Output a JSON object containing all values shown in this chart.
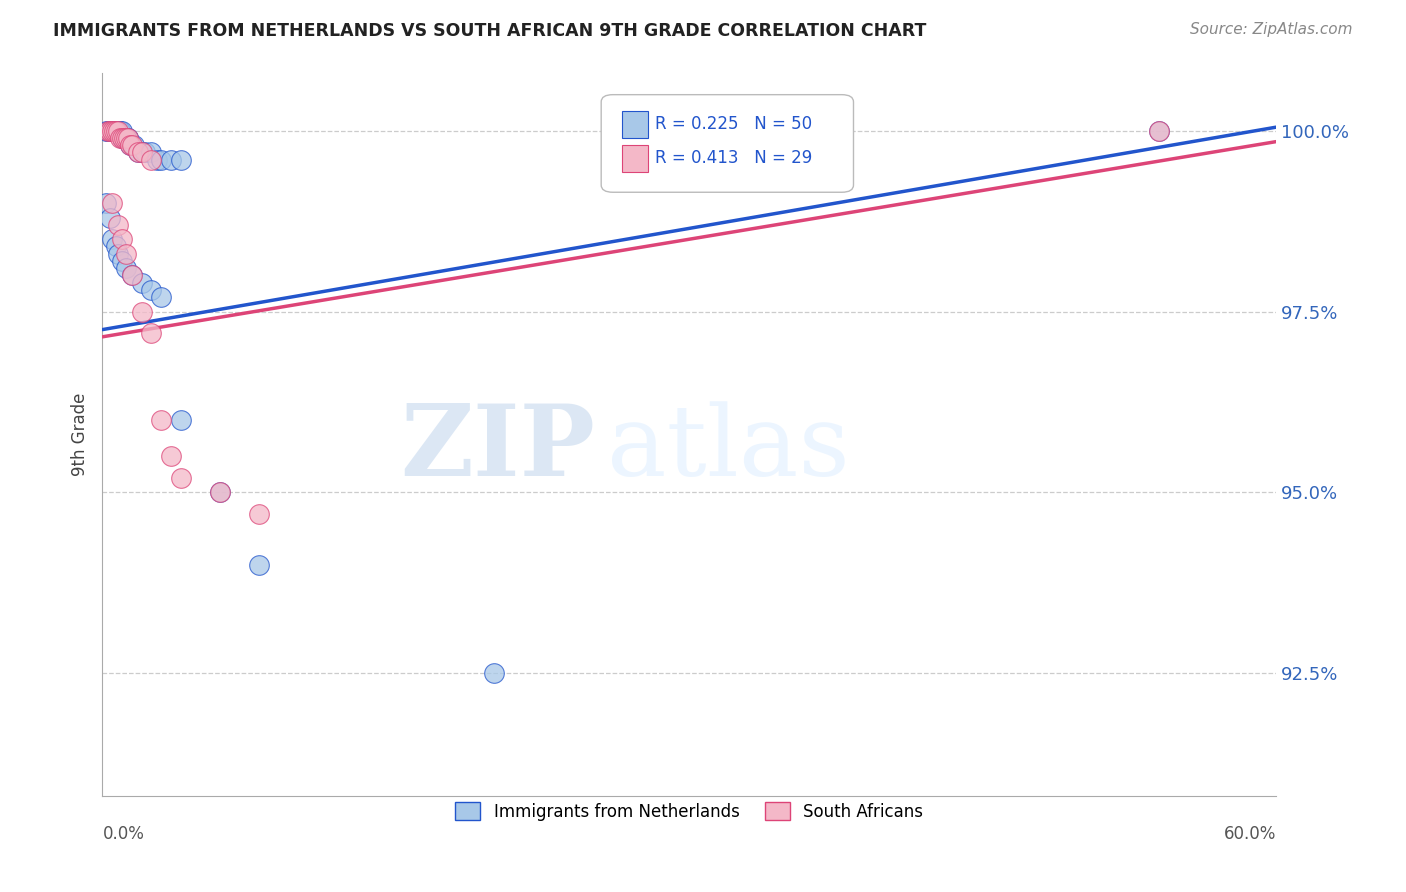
{
  "title": "IMMIGRANTS FROM NETHERLANDS VS SOUTH AFRICAN 9TH GRADE CORRELATION CHART",
  "source": "Source: ZipAtlas.com",
  "ylabel": "9th Grade",
  "ytick_labels": [
    "92.5%",
    "95.0%",
    "97.5%",
    "100.0%"
  ],
  "ytick_values": [
    0.925,
    0.95,
    0.975,
    1.0
  ],
  "xlim": [
    0.0,
    0.6
  ],
  "ylim": [
    0.908,
    1.008
  ],
  "legend_blue_label": "Immigrants from Netherlands",
  "legend_pink_label": "South Africans",
  "R_blue": 0.225,
  "N_blue": 50,
  "R_pink": 0.413,
  "N_pink": 29,
  "blue_color": "#a8c8e8",
  "pink_color": "#f4b8c8",
  "line_blue": "#2255cc",
  "line_pink": "#dd4477",
  "watermark_zip": "ZIP",
  "watermark_atlas": "atlas",
  "background_color": "#ffffff",
  "blue_points_x": [
    0.002,
    0.003,
    0.004,
    0.005,
    0.005,
    0.006,
    0.006,
    0.007,
    0.007,
    0.008,
    0.008,
    0.009,
    0.009,
    0.01,
    0.01,
    0.01,
    0.011,
    0.011,
    0.012,
    0.012,
    0.013,
    0.013,
    0.014,
    0.015,
    0.015,
    0.016,
    0.018,
    0.02,
    0.022,
    0.025,
    0.028,
    0.03,
    0.035,
    0.04,
    0.002,
    0.004,
    0.005,
    0.007,
    0.008,
    0.01,
    0.012,
    0.015,
    0.02,
    0.025,
    0.03,
    0.04,
    0.06,
    0.08,
    0.2,
    0.54
  ],
  "blue_points_y": [
    1.0,
    1.0,
    1.0,
    1.0,
    1.0,
    1.0,
    1.0,
    1.0,
    1.0,
    1.0,
    1.0,
    1.0,
    1.0,
    1.0,
    0.999,
    0.999,
    0.999,
    0.999,
    0.999,
    0.999,
    0.999,
    0.999,
    0.998,
    0.998,
    0.998,
    0.998,
    0.997,
    0.997,
    0.997,
    0.997,
    0.996,
    0.996,
    0.996,
    0.996,
    0.99,
    0.988,
    0.985,
    0.984,
    0.983,
    0.982,
    0.981,
    0.98,
    0.979,
    0.978,
    0.977,
    0.96,
    0.95,
    0.94,
    0.925,
    1.0
  ],
  "pink_points_x": [
    0.003,
    0.004,
    0.005,
    0.006,
    0.007,
    0.008,
    0.009,
    0.01,
    0.011,
    0.012,
    0.013,
    0.014,
    0.015,
    0.018,
    0.02,
    0.025,
    0.005,
    0.008,
    0.01,
    0.012,
    0.015,
    0.02,
    0.025,
    0.03,
    0.035,
    0.04,
    0.06,
    0.08,
    0.54
  ],
  "pink_points_y": [
    1.0,
    1.0,
    1.0,
    1.0,
    1.0,
    1.0,
    0.999,
    0.999,
    0.999,
    0.999,
    0.999,
    0.998,
    0.998,
    0.997,
    0.997,
    0.996,
    0.99,
    0.987,
    0.985,
    0.983,
    0.98,
    0.975,
    0.972,
    0.96,
    0.955,
    0.952,
    0.95,
    0.947,
    1.0
  ],
  "trendline_blue_x0": 0.0,
  "trendline_blue_y0": 0.9725,
  "trendline_blue_x1": 0.6,
  "trendline_blue_y1": 1.0005,
  "trendline_pink_x0": 0.0,
  "trendline_pink_y0": 0.9715,
  "trendline_pink_x1": 0.6,
  "trendline_pink_y1": 0.9985
}
